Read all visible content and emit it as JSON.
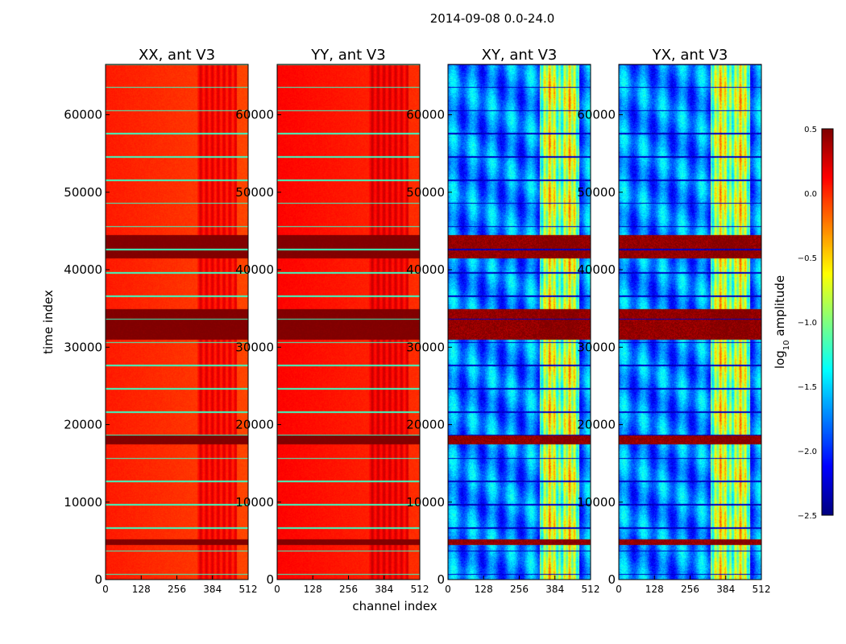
{
  "chart_data": {
    "type": "heatmap",
    "suptitle": "2014-09-08 0.0-24.0",
    "xlabel": "channel index",
    "ylabel": "time index",
    "xlim": [
      0,
      512
    ],
    "ylim": [
      0,
      66500
    ],
    "xticks": [
      0,
      128,
      256,
      384,
      512
    ],
    "yticks": [
      0,
      10000,
      20000,
      30000,
      40000,
      50000,
      60000
    ],
    "panels": [
      {
        "title": "XX, ant V3",
        "base": 0.05,
        "rfi_boost": 0.18
      },
      {
        "title": "YY, ant V3",
        "base": 0.12,
        "rfi_boost": 0.15
      },
      {
        "title": "XY, ant V3",
        "base": -1.75,
        "rfi_boost": 0.9
      },
      {
        "title": "YX, ant V3",
        "base": -1.75,
        "rfi_boost": 0.9
      }
    ],
    "bright_time_bands": [
      [
        4500,
        5200
      ],
      [
        17500,
        18600
      ],
      [
        31000,
        35000
      ],
      [
        41500,
        44500
      ]
    ],
    "rfi_channel_range": [
      328,
      470
    ],
    "colorbar": {
      "label_main": "log",
      "label_sub": "10",
      "label_rest": " amplitude",
      "min": -2.5,
      "max": 0.5,
      "ticks": [
        0.5,
        0.0,
        -0.5,
        -1.0,
        -1.5,
        -2.0,
        -2.5
      ],
      "tick_labels": [
        "0.5",
        "0.0",
        "−0.5",
        "−1.0",
        "−1.5",
        "−2.0",
        "−2.5"
      ],
      "colormap": "jet"
    }
  }
}
